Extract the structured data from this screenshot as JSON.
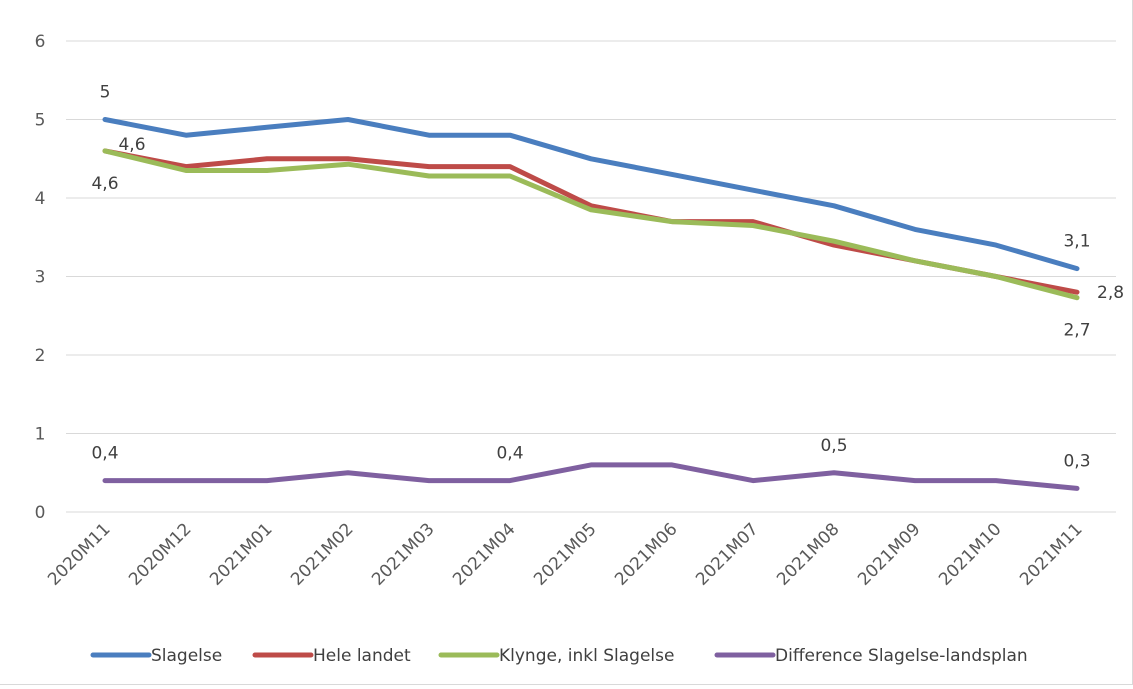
{
  "chart_data": {
    "type": "line",
    "title": "",
    "xlabel": "",
    "ylabel": "",
    "ylim": [
      0,
      6
    ],
    "yticks": [
      0,
      1,
      2,
      3,
      4,
      5,
      6
    ],
    "grid": true,
    "legend_position": "bottom",
    "categories": [
      "2020M11",
      "2020M12",
      "2021M01",
      "2021M02",
      "2021M03",
      "2021M04",
      "2021M05",
      "2021M06",
      "2021M07",
      "2021M08",
      "2021M09",
      "2021M10",
      "2021M11"
    ],
    "series": [
      {
        "name": "Slagelse",
        "color": "#4a7ebf",
        "values": [
          5.0,
          4.8,
          4.9,
          5.0,
          4.8,
          4.8,
          4.5,
          4.3,
          4.1,
          3.9,
          3.6,
          3.4,
          3.1
        ]
      },
      {
        "name": "Hele landet",
        "color": "#be4b48",
        "values": [
          4.6,
          4.4,
          4.5,
          4.5,
          4.4,
          4.4,
          3.9,
          3.7,
          3.7,
          3.4,
          3.2,
          3.0,
          2.8
        ]
      },
      {
        "name": "Klynge, inkl Slagelse",
        "color": "#9bbb59",
        "values": [
          4.6,
          4.35,
          4.35,
          4.43,
          4.28,
          4.28,
          3.85,
          3.7,
          3.65,
          3.45,
          3.2,
          3.0,
          2.73
        ]
      },
      {
        "name": "Difference Slagelse-landsplan",
        "color": "#7f60a0",
        "values": [
          0.4,
          0.4,
          0.4,
          0.5,
          0.4,
          0.4,
          0.6,
          0.6,
          0.4,
          0.5,
          0.4,
          0.4,
          0.3
        ]
      }
    ],
    "data_labels": [
      {
        "series": 0,
        "index": 0,
        "text": "5",
        "pos": "above"
      },
      {
        "series": 1,
        "index": 0,
        "text": "4,6",
        "pos": "above-right"
      },
      {
        "series": 2,
        "index": 0,
        "text": "4,6",
        "pos": "below"
      },
      {
        "series": 0,
        "index": 12,
        "text": "3,1",
        "pos": "above"
      },
      {
        "series": 1,
        "index": 12,
        "text": "2,8",
        "pos": "right"
      },
      {
        "series": 2,
        "index": 12,
        "text": "2,7",
        "pos": "below"
      },
      {
        "series": 3,
        "index": 0,
        "text": "0,4",
        "pos": "above"
      },
      {
        "series": 3,
        "index": 5,
        "text": "0,4",
        "pos": "above"
      },
      {
        "series": 3,
        "index": 9,
        "text": "0,5",
        "pos": "above"
      },
      {
        "series": 3,
        "index": 12,
        "text": "0,3",
        "pos": "above"
      }
    ]
  }
}
